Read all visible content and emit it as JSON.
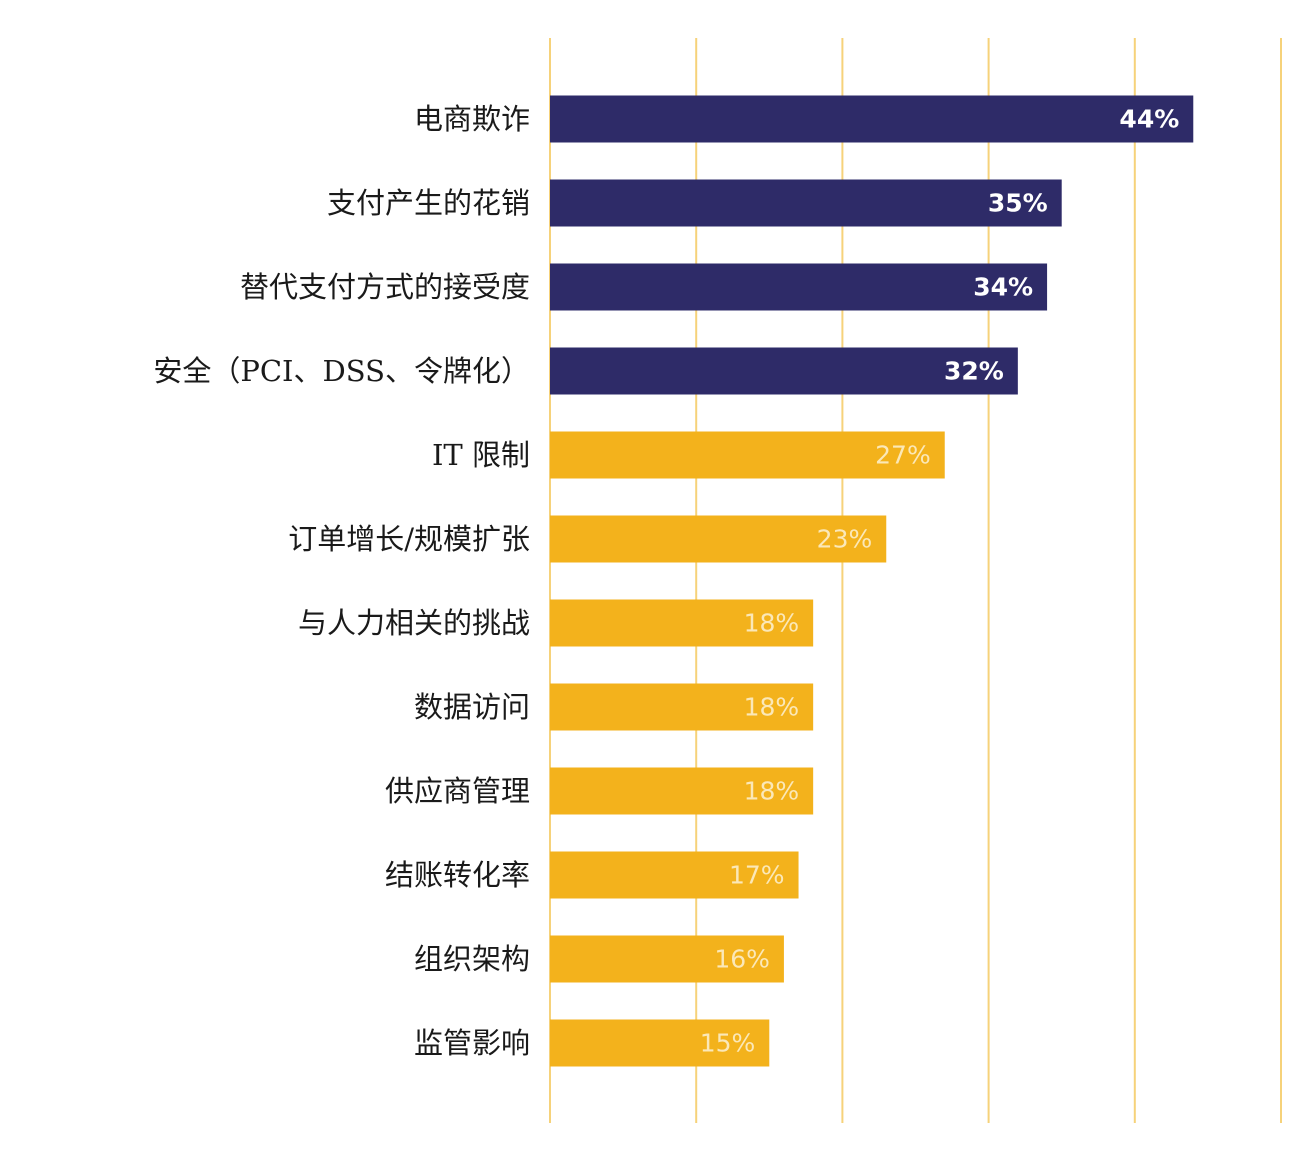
{
  "chart_data": {
    "type": "bar",
    "orientation": "horizontal",
    "title": "",
    "xlabel": "",
    "ylabel": "",
    "xlim": [
      0,
      50
    ],
    "grid": true,
    "gridlines": [
      0,
      10,
      20,
      30,
      40,
      50
    ],
    "categories": [
      "电商欺诈",
      "支付产生的花销",
      "替代支付方式的接受度",
      "安全（PCI、DSS、令牌化）",
      "IT 限制",
      "订单增长/规模扩张",
      "与人力相关的挑战",
      "数据访问",
      "供应商管理",
      "结账转化率",
      "组织架构",
      "监管影响"
    ],
    "values": [
      44,
      35,
      34,
      32,
      27,
      23,
      18,
      18,
      18,
      17,
      16,
      15
    ],
    "value_labels": [
      "44%",
      "35%",
      "34%",
      "32%",
      "27%",
      "23%",
      "18%",
      "18%",
      "18%",
      "17%",
      "16%",
      "15%"
    ],
    "highlighted_count": 4,
    "colors": {
      "highlight": "#2e2b68",
      "normal": "#f3b21c",
      "grid": "#f6d27a",
      "highlight_text": "#ffffff",
      "normal_text": "#fbe8b8"
    }
  }
}
